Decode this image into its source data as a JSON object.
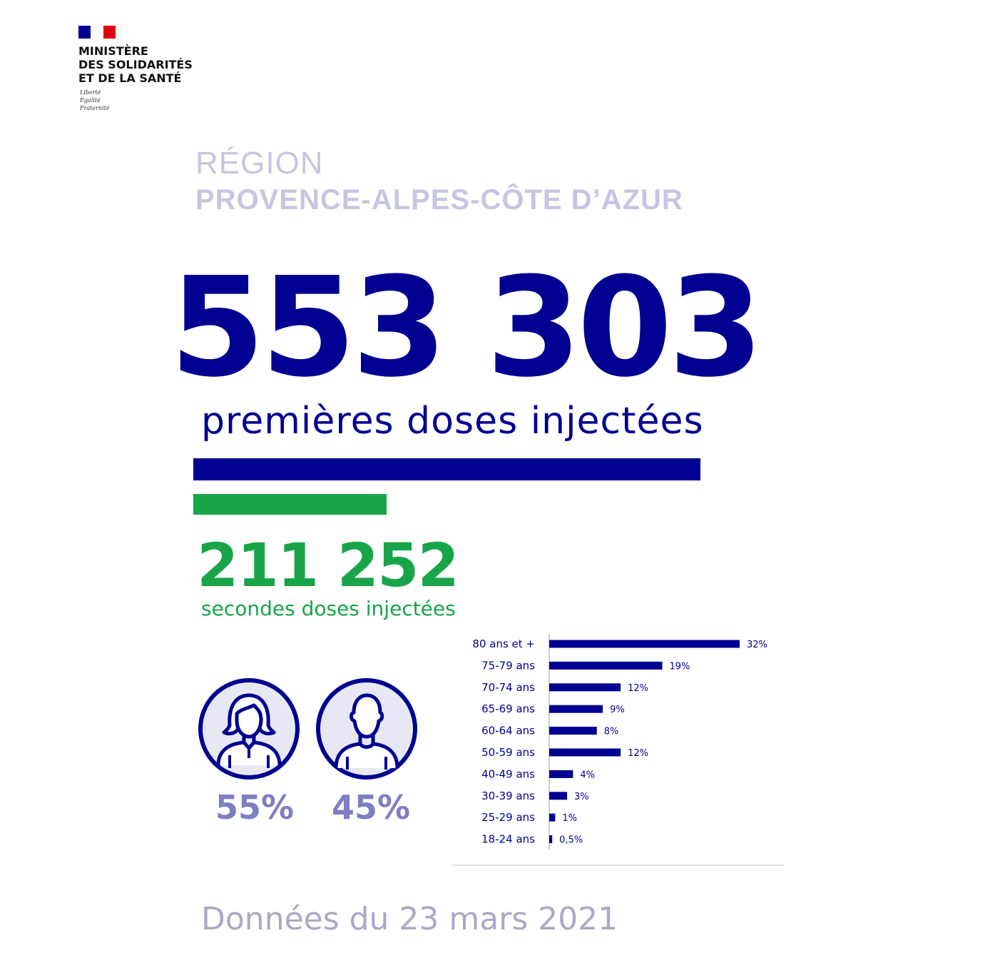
{
  "header": {
    "ministry_lines": [
      "MINISTÈRE",
      "DES SOLIDARITÉS",
      "ET DE LA SANTÉ"
    ],
    "motto_lines": [
      "Liberté",
      "Égalité",
      "Fraternité"
    ]
  },
  "region": {
    "label": "RÉGION",
    "name": "PROVENCE-ALPES-CÔTE D’AZUR"
  },
  "first_doses": {
    "value": "553 303",
    "label": "premières doses injectées"
  },
  "second_doses": {
    "value": "211 252",
    "label": "secondes doses injectées"
  },
  "gender": {
    "female_pct": "55%",
    "male_pct": "45%"
  },
  "colors": {
    "primary": "#000091",
    "secondary": "#18a54a",
    "region": "#c6c6e2",
    "gender_pct": "#7e7ec4",
    "icon_fill": "#e8e8f4"
  },
  "chart_data": [
    {
      "type": "bar",
      "orientation": "horizontal",
      "series": [
        {
          "name": "premières doses injectées",
          "values": [
            553303
          ]
        },
        {
          "name": "secondes doses injectées",
          "values": [
            211252
          ]
        }
      ]
    },
    {
      "type": "bar",
      "orientation": "horizontal",
      "categories": [
        "80 ans et +",
        "75-79 ans",
        "70-74 ans",
        "65-69 ans",
        "60-64 ans",
        "50-59 ans",
        "40-49 ans",
        "30-39 ans",
        "25-29 ans",
        "18-24 ans"
      ],
      "values": [
        32,
        19,
        12,
        9,
        8,
        12,
        4,
        3,
        1,
        0.5
      ],
      "value_labels": [
        "32%",
        "19%",
        "12%",
        "9%",
        "8%",
        "12%",
        "4%",
        "3%",
        "1%",
        "0,5%"
      ],
      "xlim": [
        0,
        32
      ]
    }
  ],
  "footer": {
    "date_text": "Données du  23 mars 2021"
  }
}
